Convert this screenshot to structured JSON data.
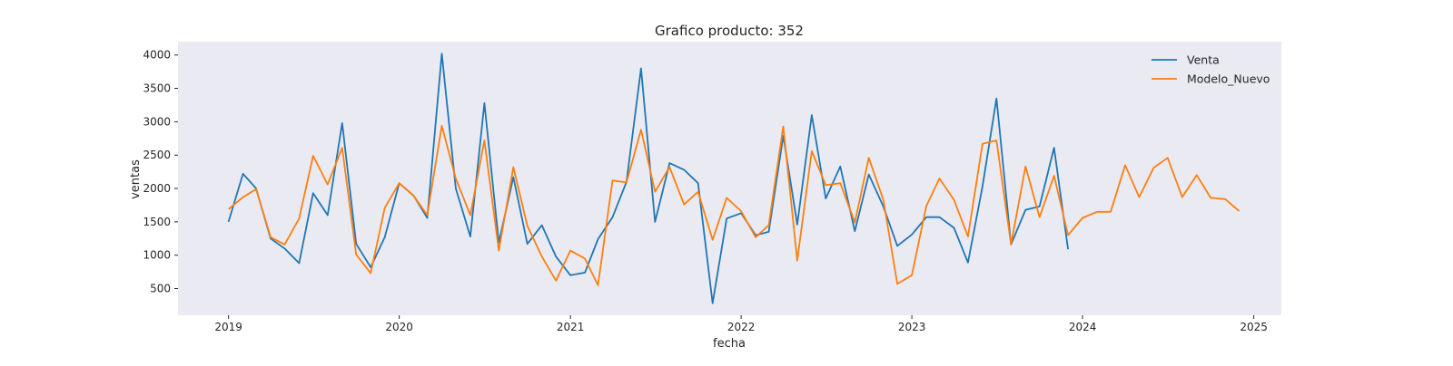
{
  "chart_data": {
    "type": "line",
    "title": "Grafico producto: 352",
    "xlabel": "fecha",
    "ylabel": "ventas",
    "xlim": [
      "2018-09-15",
      "2025-03-01"
    ],
    "ylim": [
      100,
      4200
    ],
    "x_ticks": [
      "2019",
      "2020",
      "2021",
      "2022",
      "2023",
      "2024",
      "2025"
    ],
    "y_ticks": [
      500,
      1000,
      1500,
      2000,
      2500,
      3000,
      3500,
      4000
    ],
    "grid": false,
    "legend": {
      "position": "top-right"
    },
    "series": [
      {
        "name": "Venta",
        "color": "#1f77b4",
        "start": "2019-01",
        "values": [
          1500,
          2220,
          2000,
          1250,
          1100,
          880,
          1930,
          1600,
          2980,
          1170,
          820,
          1270,
          2080,
          1890,
          1560,
          4020,
          2000,
          1280,
          3280,
          1190,
          2170,
          1170,
          1450,
          980,
          700,
          740,
          1240,
          1570,
          2100,
          3800,
          1500,
          2380,
          2280,
          2080,
          280,
          1550,
          1630,
          1300,
          1350,
          2790,
          1460,
          3100,
          1850,
          2330,
          1360,
          2210,
          1730,
          1140,
          1310,
          1570,
          1570,
          1410,
          890,
          2030,
          3350,
          1160,
          1680,
          1730,
          2610,
          1090
        ]
      },
      {
        "name": "Modelo_Nuevo",
        "color": "#ff7f0e",
        "start": "2019-01",
        "values": [
          1690,
          1870,
          1990,
          1270,
          1160,
          1550,
          2490,
          2060,
          2610,
          1010,
          730,
          1710,
          2080,
          1890,
          1600,
          2940,
          2150,
          1600,
          2720,
          1070,
          2320,
          1440,
          980,
          620,
          1070,
          950,
          550,
          2120,
          2090,
          2880,
          1950,
          2320,
          1760,
          1950,
          1230,
          1860,
          1660,
          1270,
          1450,
          2930,
          920,
          2560,
          2050,
          2080,
          1490,
          2460,
          1830,
          570,
          700,
          1740,
          2150,
          1830,
          1280,
          2670,
          2720,
          1160,
          2330,
          1570,
          2190,
          1300,
          1560,
          1650,
          1650,
          2350,
          1870,
          2310,
          2460,
          1870,
          2200,
          1860,
          1840,
          1660
        ]
      }
    ]
  }
}
